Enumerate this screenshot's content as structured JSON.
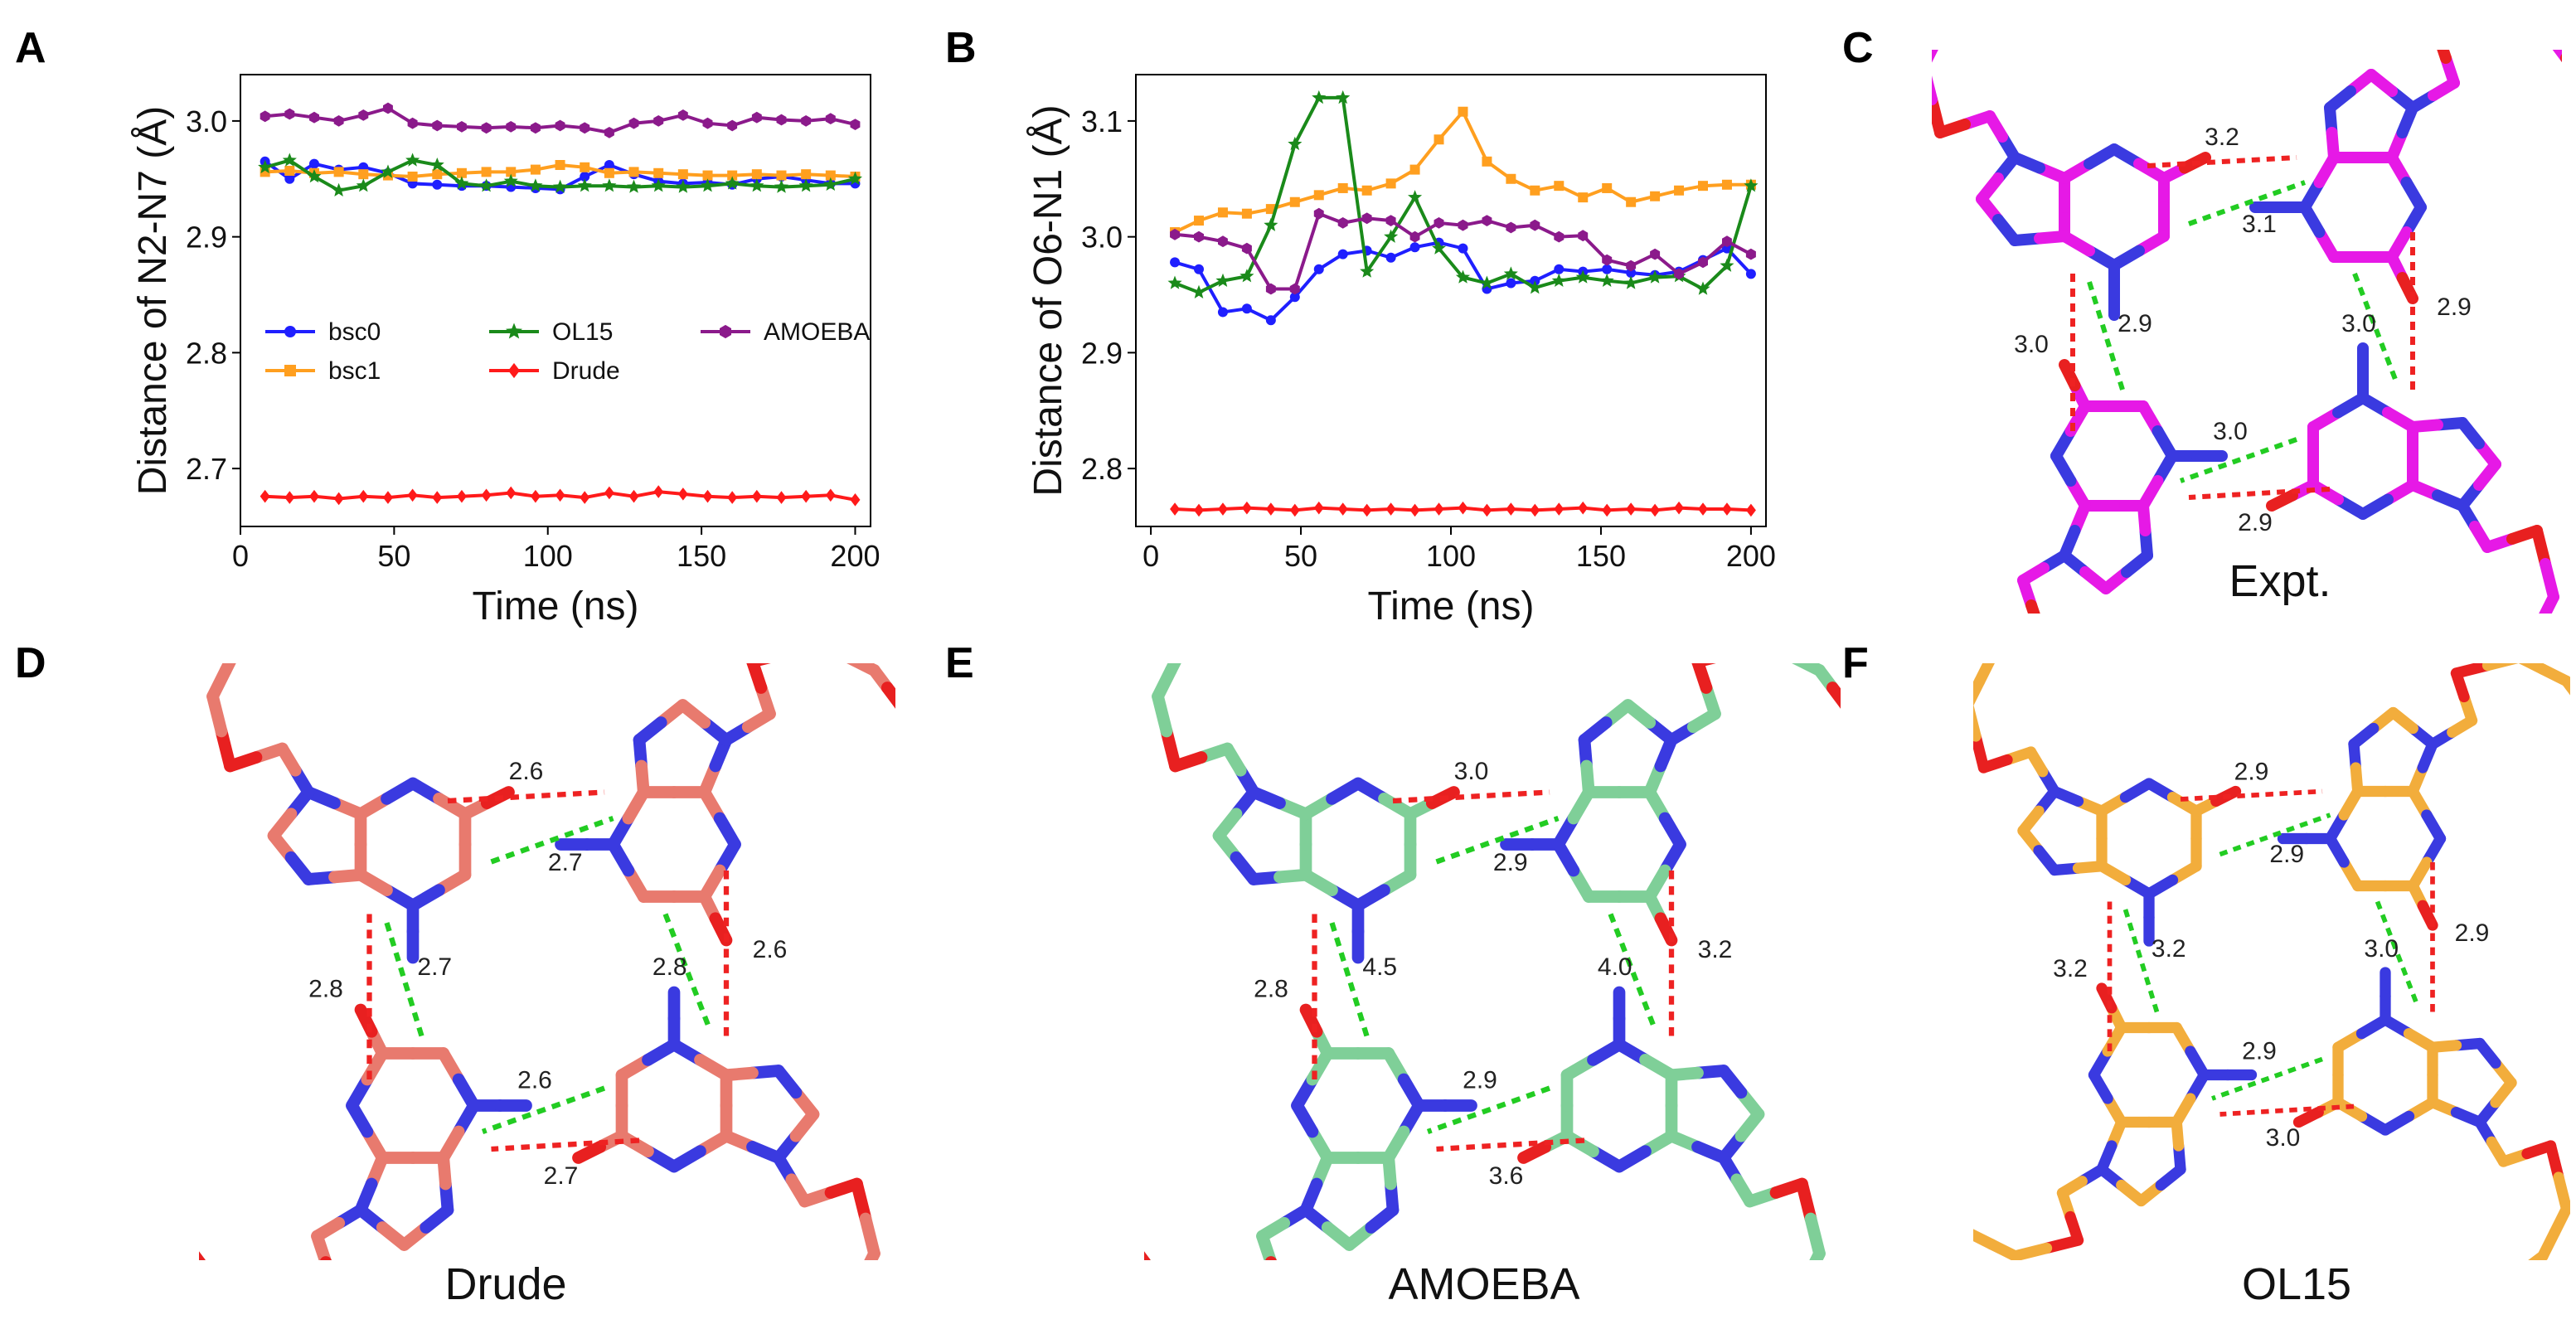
{
  "panels": {
    "A": {
      "letter": "A"
    },
    "B": {
      "letter": "B"
    },
    "C": {
      "letter": "C",
      "caption": "Expt."
    },
    "D": {
      "letter": "D",
      "caption": "Drude"
    },
    "E": {
      "letter": "E",
      "caption": "AMOEBA"
    },
    "F": {
      "letter": "F",
      "caption": "OL15"
    }
  },
  "colors": {
    "bsc0": "#1f1fff",
    "bsc1": "#ff9f1f",
    "OL15": "#1a8a1a",
    "Drude": "#ff1a1a",
    "AMOEBA": "#8b1a8b",
    "expt_carbon": "#e619e6",
    "drude_carbon": "#e87a6e",
    "amoeba_carbon": "#7fcf98",
    "ol15_carbon": "#f2ad3c",
    "nitrogen": "#3a3ae0",
    "oxygen": "#e82020",
    "phosphorus": "#f08a00",
    "hbond_green": "#22cc22",
    "hbond_red": "#ee2222"
  },
  "chart_data": [
    {
      "type": "line",
      "panel": "A",
      "xlabel": "Time (ns)",
      "ylabel": "Distance of N2-N7 (Å)",
      "xlim": [
        0,
        205
      ],
      "ylim": [
        2.65,
        3.04
      ],
      "xticks": [
        0,
        50,
        100,
        150,
        200
      ],
      "yticks": [
        2.7,
        2.8,
        2.9,
        3.0
      ],
      "ytick_labels": [
        "2.7",
        "2.8",
        "2.9",
        "3.0"
      ],
      "grid": false,
      "legend_position": "center",
      "x": [
        8,
        16,
        24,
        32,
        40,
        48,
        56,
        64,
        72,
        80,
        88,
        96,
        104,
        112,
        120,
        128,
        136,
        144,
        152,
        160,
        168,
        176,
        184,
        192,
        200
      ],
      "series": [
        {
          "name": "bsc0",
          "marker": "circle",
          "values": [
            2.965,
            2.95,
            2.963,
            2.958,
            2.96,
            2.955,
            2.946,
            2.945,
            2.944,
            2.944,
            2.943,
            2.942,
            2.941,
            2.952,
            2.962,
            2.954,
            2.948,
            2.946,
            2.947,
            2.945,
            2.95,
            2.952,
            2.949,
            2.946,
            2.946
          ]
        },
        {
          "name": "bsc1",
          "marker": "square",
          "values": [
            2.956,
            2.957,
            2.955,
            2.956,
            2.954,
            2.953,
            2.952,
            2.954,
            2.955,
            2.956,
            2.956,
            2.958,
            2.962,
            2.96,
            2.955,
            2.956,
            2.955,
            2.954,
            2.953,
            2.953,
            2.954,
            2.953,
            2.954,
            2.953,
            2.952
          ]
        },
        {
          "name": "OL15",
          "marker": "star",
          "values": [
            2.96,
            2.966,
            2.952,
            2.94,
            2.944,
            2.956,
            2.966,
            2.962,
            2.946,
            2.944,
            2.948,
            2.944,
            2.943,
            2.944,
            2.944,
            2.943,
            2.944,
            2.943,
            2.944,
            2.946,
            2.944,
            2.943,
            2.944,
            2.945,
            2.95
          ]
        },
        {
          "name": "Drude",
          "marker": "diamond",
          "values": [
            2.676,
            2.675,
            2.676,
            2.674,
            2.676,
            2.675,
            2.677,
            2.675,
            2.676,
            2.677,
            2.679,
            2.676,
            2.677,
            2.675,
            2.679,
            2.676,
            2.68,
            2.678,
            2.676,
            2.675,
            2.676,
            2.675,
            2.676,
            2.677,
            2.673
          ]
        },
        {
          "name": "AMOEBA",
          "marker": "hexagon",
          "values": [
            3.004,
            3.006,
            3.003,
            3.0,
            3.005,
            3.011,
            2.998,
            2.996,
            2.995,
            2.994,
            2.995,
            2.994,
            2.996,
            2.994,
            2.99,
            2.998,
            3.0,
            3.005,
            2.998,
            2.996,
            3.003,
            3.001,
            3.0,
            3.002,
            2.997
          ]
        }
      ]
    },
    {
      "type": "line",
      "panel": "B",
      "xlabel": "Time (ns)",
      "ylabel": "Distance of O6-N1 (Å)",
      "xlim": [
        -5,
        205
      ],
      "ylim": [
        2.75,
        3.14
      ],
      "xticks": [
        0,
        50,
        100,
        150,
        200
      ],
      "yticks": [
        2.8,
        2.9,
        3.0,
        3.1
      ],
      "ytick_labels": [
        "2.8",
        "2.9",
        "3.0",
        "3.1"
      ],
      "grid": false,
      "x": [
        8,
        16,
        24,
        32,
        40,
        48,
        56,
        64,
        72,
        80,
        88,
        96,
        104,
        112,
        120,
        128,
        136,
        144,
        152,
        160,
        168,
        176,
        184,
        192,
        200
      ],
      "series": [
        {
          "name": "bsc0",
          "marker": "circle",
          "values": [
            2.978,
            2.972,
            2.935,
            2.938,
            2.928,
            2.948,
            2.972,
            2.985,
            2.988,
            2.982,
            2.991,
            2.995,
            2.99,
            2.955,
            2.96,
            2.962,
            2.972,
            2.97,
            2.972,
            2.969,
            2.967,
            2.97,
            2.98,
            2.99,
            2.968
          ]
        },
        {
          "name": "bsc1",
          "marker": "square",
          "values": [
            3.004,
            3.014,
            3.021,
            3.02,
            3.024,
            3.03,
            3.036,
            3.042,
            3.04,
            3.046,
            3.058,
            3.084,
            3.108,
            3.065,
            3.05,
            3.04,
            3.044,
            3.034,
            3.042,
            3.03,
            3.035,
            3.04,
            3.044,
            3.045,
            3.045
          ]
        },
        {
          "name": "OL15",
          "marker": "star",
          "values": [
            2.96,
            2.952,
            2.962,
            2.966,
            3.01,
            3.08,
            3.12,
            3.12,
            2.97,
            3.0,
            3.034,
            2.99,
            2.965,
            2.96,
            2.968,
            2.956,
            2.962,
            2.965,
            2.962,
            2.96,
            2.965,
            2.966,
            2.955,
            2.975,
            3.044
          ]
        },
        {
          "name": "Drude",
          "marker": "diamond",
          "values": [
            2.765,
            2.764,
            2.765,
            2.766,
            2.765,
            2.764,
            2.766,
            2.765,
            2.764,
            2.765,
            2.764,
            2.765,
            2.766,
            2.764,
            2.765,
            2.764,
            2.765,
            2.766,
            2.764,
            2.765,
            2.764,
            2.766,
            2.765,
            2.765,
            2.764
          ]
        },
        {
          "name": "AMOEBA",
          "marker": "hexagon",
          "values": [
            3.002,
            3.0,
            2.996,
            2.99,
            2.955,
            2.955,
            3.02,
            3.012,
            3.016,
            3.014,
            3.0,
            3.012,
            3.01,
            3.014,
            3.008,
            3.01,
            3.0,
            3.001,
            2.98,
            2.975,
            2.985,
            2.968,
            2.978,
            2.996,
            2.985
          ]
        }
      ]
    }
  ],
  "quartets": {
    "C": {
      "labels": [
        "3.2",
        "3.1",
        "2.9",
        "3.0",
        "2.9",
        "3.0",
        "3.0",
        "2.9"
      ]
    },
    "D": {
      "labels": [
        "2.6",
        "2.7",
        "2.6",
        "2.8",
        "2.7",
        "2.6",
        "2.8",
        "2.7"
      ]
    },
    "E": {
      "labels": [
        "3.0",
        "2.9",
        "3.2",
        "4.0",
        "3.6",
        "2.9",
        "2.8",
        "4.5"
      ]
    },
    "F": {
      "labels": [
        "2.9",
        "2.9",
        "2.9",
        "3.0",
        "3.0",
        "2.9",
        "3.2",
        "3.2"
      ]
    }
  }
}
